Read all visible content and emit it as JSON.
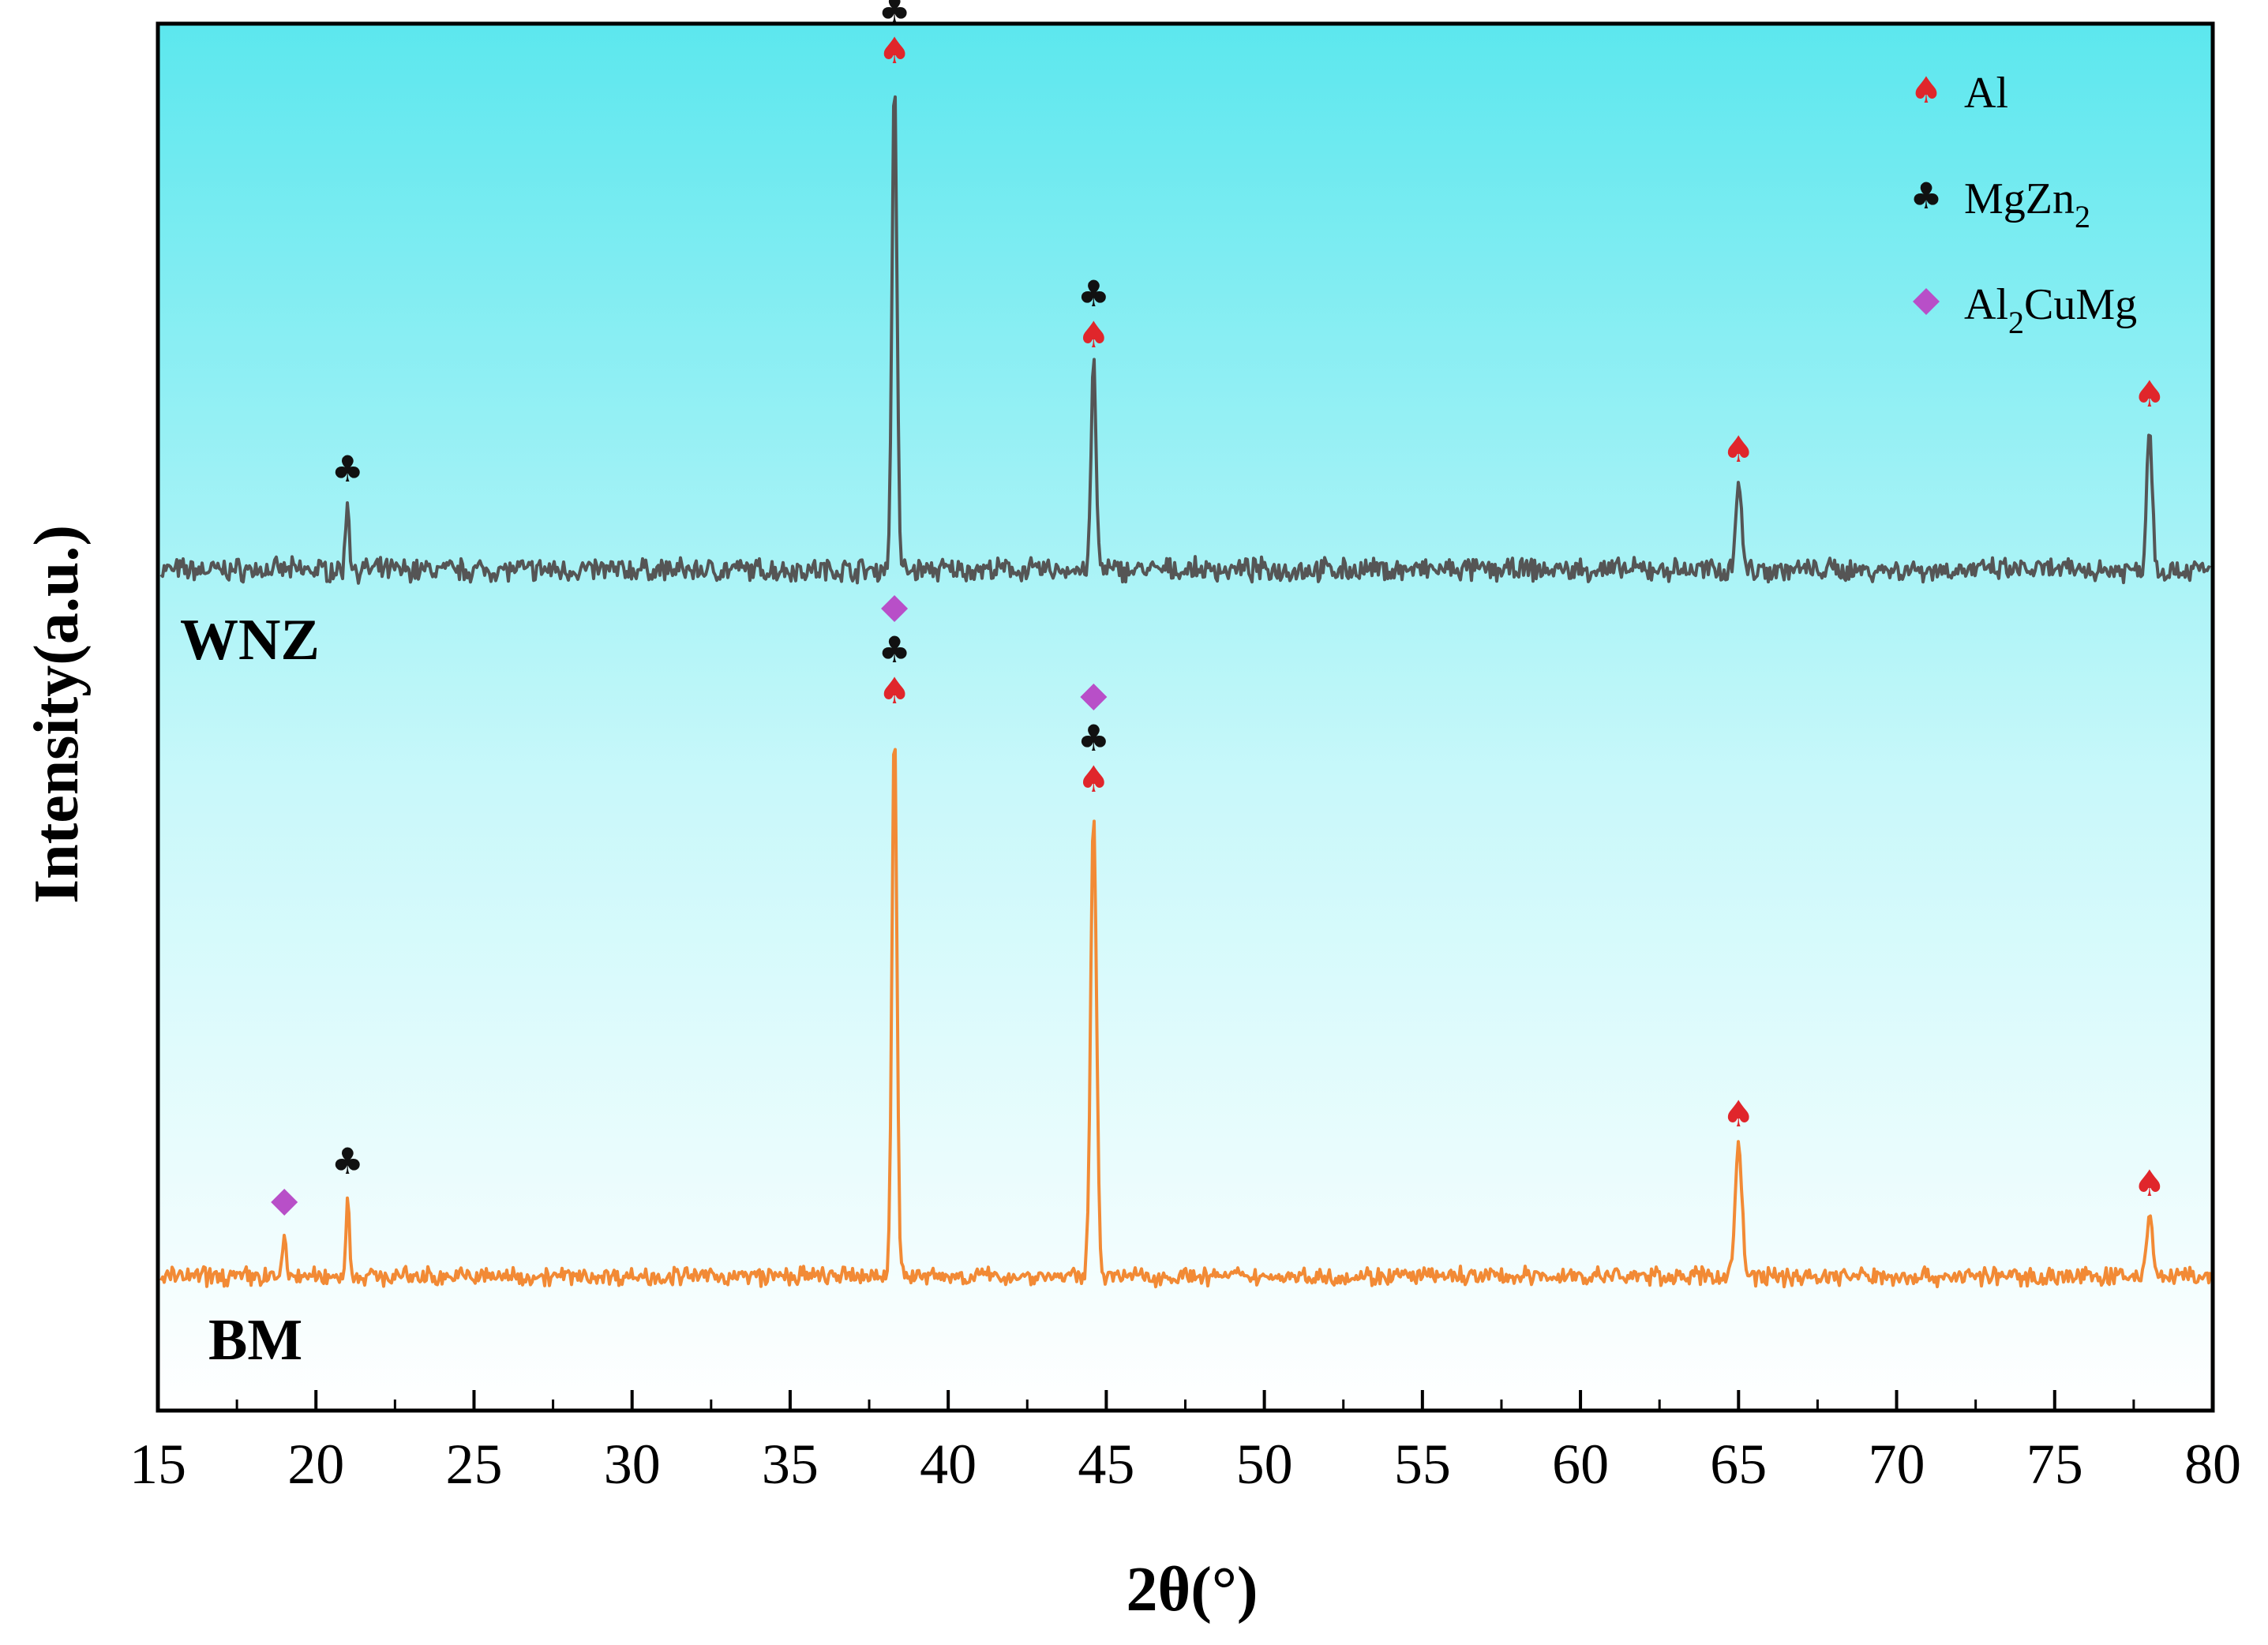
{
  "chart_data": {
    "type": "line",
    "title": "",
    "xlabel": "2θ(°)",
    "ylabel": "Intensity(a.u.)",
    "xlim": [
      15,
      80
    ],
    "xticks": [
      15,
      20,
      25,
      30,
      35,
      40,
      45,
      50,
      55,
      60,
      65,
      70,
      75,
      80
    ],
    "grid": false,
    "legend_position": "top-right",
    "background": {
      "top_color": "#5ce7ee",
      "bottom_color": "#ffffff"
    },
    "legend": [
      {
        "phase": "Al",
        "label": "Al",
        "sub": "",
        "symbol": "spade",
        "color": "#e0262b"
      },
      {
        "phase": "MgZn2",
        "label": "MgZn",
        "sub": "2",
        "symbol": "club",
        "color": "#111111"
      },
      {
        "phase": "Al2CuMg",
        "label": "Al",
        "sub": "2",
        "suffix": "CuMg",
        "symbol": "diamond",
        "color": "#b84fc8"
      }
    ],
    "series": [
      {
        "name": "WNZ",
        "color": "#555555",
        "baseline": 0.0,
        "peaks": [
          {
            "x": 21.0,
            "h": 0.09,
            "w": 0.08
          },
          {
            "x": 38.3,
            "h": 0.62,
            "w": 0.11,
            "markers": [
              "spade",
              "club"
            ]
          },
          {
            "x": 44.6,
            "h": 0.26,
            "w": 0.11,
            "markers": [
              "spade",
              "club"
            ]
          },
          {
            "x": 65.0,
            "h": 0.115,
            "w": 0.13,
            "markers": [
              "spade"
            ]
          },
          {
            "x": 78.0,
            "h": 0.185,
            "w": 0.12,
            "markers": [
              "spade"
            ]
          }
        ],
        "peak_markers_extra": [
          {
            "x": 21.0,
            "markers": [
              "club"
            ]
          }
        ]
      },
      {
        "name": "BM",
        "color": "#f28a35",
        "baseline": 0.0,
        "peaks": [
          {
            "x": 19.0,
            "h": 0.07,
            "w": 0.07,
            "markers": [
              "diamond"
            ]
          },
          {
            "x": 21.0,
            "h": 0.135,
            "w": 0.07,
            "markers": [
              "club"
            ]
          },
          {
            "x": 38.3,
            "h": 0.88,
            "w": 0.11,
            "markers": [
              "spade",
              "club",
              "diamond"
            ]
          },
          {
            "x": 44.6,
            "h": 0.74,
            "w": 0.13,
            "markers": [
              "spade",
              "club",
              "diamond"
            ]
          },
          {
            "x": 65.0,
            "h": 0.21,
            "w": 0.15,
            "markers": [
              "spade"
            ]
          },
          {
            "x": 78.0,
            "h": 0.1,
            "w": 0.13,
            "markers": [
              "spade"
            ]
          }
        ]
      }
    ]
  }
}
